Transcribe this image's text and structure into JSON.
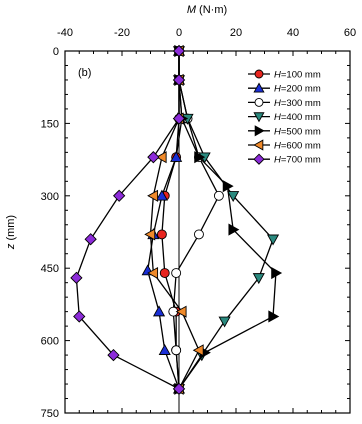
{
  "chart_data": {
    "type": "line",
    "panel_label": "(b)",
    "xlabel_var": "M",
    "xlabel_unit": " (N·m)",
    "ylabel_var": "z",
    "ylabel_unit": " (mm)",
    "xlim": [
      -40,
      60
    ],
    "ylim": [
      0,
      750
    ],
    "y_inverted": true,
    "x_axis_position": "top",
    "xticks": [
      -40,
      -20,
      0,
      20,
      40,
      60
    ],
    "yticks": [
      0,
      150,
      300,
      450,
      600,
      750
    ],
    "grid": false,
    "legend_position": "top-right",
    "series": [
      {
        "name": "H=100 mm",
        "legend_var": "H",
        "legend_val": "=100 mm",
        "marker": "circle",
        "color": "#e8251f",
        "points": [
          [
            0,
            0
          ],
          [
            0,
            60
          ],
          [
            0,
            140
          ],
          [
            -1,
            220
          ],
          [
            -5,
            300
          ],
          [
            -6,
            380
          ],
          [
            -5,
            460
          ],
          [
            -1,
            540
          ],
          [
            -1,
            620
          ],
          [
            0,
            700
          ]
        ]
      },
      {
        "name": "H=200 mm",
        "legend_var": "H",
        "legend_val": "=200 mm",
        "marker": "triangle-up",
        "color": "#1a2fd6",
        "points": [
          [
            0,
            0
          ],
          [
            0,
            60
          ],
          [
            1,
            140
          ],
          [
            -1,
            220
          ],
          [
            -6,
            300
          ],
          [
            -9,
            380
          ],
          [
            -11,
            455
          ],
          [
            -7,
            540
          ],
          [
            -5,
            620
          ],
          [
            0,
            700
          ]
        ]
      },
      {
        "name": "H=300 mm",
        "legend_var": "H",
        "legend_val": "=300 mm",
        "marker": "circle-open",
        "color": "#ffffff",
        "points": [
          [
            0,
            0
          ],
          [
            0,
            60
          ],
          [
            3,
            140
          ],
          [
            7,
            220
          ],
          [
            14,
            300
          ],
          [
            7,
            380
          ],
          [
            -1,
            460
          ],
          [
            -2,
            540
          ],
          [
            -1,
            620
          ],
          [
            0,
            700
          ]
        ]
      },
      {
        "name": "H=400 mm",
        "legend_var": "H",
        "legend_val": "=400 mm",
        "marker": "triangle-down",
        "color": "#2a8a7f",
        "points": [
          [
            0,
            0
          ],
          [
            0,
            60
          ],
          [
            3,
            140
          ],
          [
            9,
            220
          ],
          [
            19,
            300
          ],
          [
            33,
            390
          ],
          [
            28,
            470
          ],
          [
            16,
            560
          ],
          [
            8,
            630
          ],
          [
            0,
            700
          ]
        ]
      },
      {
        "name": "H=500 mm",
        "legend_var": "H",
        "legend_val": "=500 mm",
        "marker": "triangle-right",
        "color": "#000000",
        "points": [
          [
            0,
            0
          ],
          [
            0,
            60
          ],
          [
            1,
            140
          ],
          [
            7,
            220
          ],
          [
            17,
            280
          ],
          [
            19,
            370
          ],
          [
            34,
            460
          ],
          [
            33,
            550
          ],
          [
            9,
            625
          ],
          [
            0,
            700
          ]
        ]
      },
      {
        "name": "H=600 mm",
        "legend_var": "H",
        "legend_val": "=600 mm",
        "marker": "triangle-left",
        "color": "#f08a2a",
        "points": [
          [
            0,
            0
          ],
          [
            0,
            60
          ],
          [
            0,
            140
          ],
          [
            -6,
            220
          ],
          [
            -9,
            300
          ],
          [
            -10,
            380
          ],
          [
            -9,
            460
          ],
          [
            1,
            540
          ],
          [
            7,
            620
          ],
          [
            0,
            700
          ]
        ]
      },
      {
        "name": "H=700 mm",
        "legend_var": "H",
        "legend_val": "=700 mm",
        "marker": "diamond",
        "color": "#8c2bd9",
        "points": [
          [
            0,
            0
          ],
          [
            0,
            60
          ],
          [
            0,
            140
          ],
          [
            -9,
            220
          ],
          [
            -21,
            300
          ],
          [
            -31,
            390
          ],
          [
            -36,
            470
          ],
          [
            -35,
            550
          ],
          [
            -23,
            630
          ],
          [
            0,
            700
          ]
        ]
      }
    ]
  }
}
